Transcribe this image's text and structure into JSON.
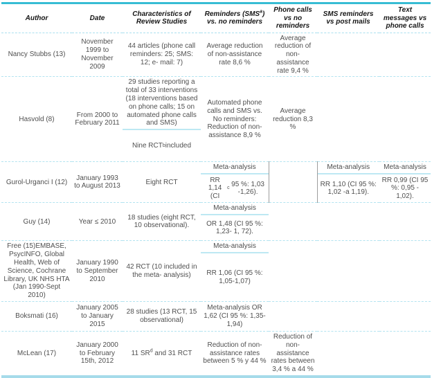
{
  "accent_colors": {
    "table_top_border": "#36bcd4",
    "table_bottom_border": "#a6dbea",
    "row_separator": "#b2e3f0",
    "cell_divider": "#bde8f3",
    "body_text": "#4f4f4f",
    "header_text": "#161616"
  },
  "table": {
    "columns": [
      {
        "key": "author",
        "label": "Author"
      },
      {
        "key": "date",
        "label": "Date"
      },
      {
        "key": "characteristics",
        "label": "Characteristics of Review Studies"
      },
      {
        "key": "sms-vs-none",
        "label": "Reminders (SMS^a) vs. no reminders"
      },
      {
        "key": "phone-vs-none",
        "label": "Phone calls vs no reminders"
      },
      {
        "key": "sms-vs-post",
        "label": "SMS reminders vs post mails"
      },
      {
        "key": "text-vs-phone",
        "label": "Text messages vs phone calls"
      }
    ],
    "rows": [
      {
        "cells": [
          "Nancy Stubbs (13)",
          "November 1999 to November 2009",
          "44 articles (phone call reminders: 25; SMS: 12; e- mail: 7)",
          "Average reduction of non-assistance rate 8,6 %",
          "Average reduction of non-assistance rate 9,4 %",
          "",
          ""
        ]
      },
      {
        "cells": [
          "Hasvold (8)",
          "From 2000 to February 2011",
          {
            "blocks": [
              "29 studies reporting a total of 33 interventions (18 interventions based on phone calls; 15 on automated phone calls and SMS)",
              "Nine RCT^b included"
            ]
          },
          "Automated phone calls and SMS vs. No reminders: Reduction of non-assistance 8,9 %",
          "Average reduction 8,3 %",
          "",
          ""
        ]
      },
      {
        "cells": [
          "Gurol-Urganci I (12)",
          "January 1993 to August 2013",
          "Eight RCT",
          {
            "blocks": [
              "Meta-analysis",
              "RR 1,14 (CI^c 95 %: 1,03 -1,26)."
            ]
          },
          {
            "text": "",
            "vborders": true
          },
          {
            "blocks": [
              "Meta-analysis",
              "RR 1,10 (CI 95 %: 1,02 -a 1,19)."
            ]
          },
          {
            "blocks": [
              "Meta-analysis",
              "RR 0,99 (CI 95 %: 0,95 - 1,02)."
            ]
          }
        ]
      },
      {
        "cells": [
          "Guy (14)",
          "Year ≤ 2010",
          "18 studies (eight RCT, 10 observational).",
          {
            "blocks": [
              "Meta-analysis",
              "OR 1,48 (CI 95 %: 1,23- 1, 72)."
            ]
          },
          "",
          "",
          ""
        ]
      },
      {
        "cells": [
          "Free (15)EMBASE, PsycINFO, Global Health, Web of Science, Cochrane Library, UK NHS HTA (Jan 1990-Sept 2010)",
          "January 1990 to September 2010",
          "42 RCT (10 included in the meta- analysis)",
          {
            "blocks": [
              "Meta-analysis",
              "RR 1,06 (CI 95 %: 1,05-1,07)"
            ]
          },
          "",
          "",
          ""
        ]
      },
      {
        "cells": [
          "Boksmati (16)",
          "January 2005 to January 2015",
          "28 studies (13 RCT, 15 observational)",
          "Meta-analysis OR 1,62 (CI 95 %: 1,35-1,94)",
          "",
          "",
          ""
        ]
      },
      {
        "cells": [
          "McLean (17)",
          "January 2000 to February 15th, 2012",
          "11 SR^d and 31 RCT",
          "Reduction of non-assistance rates between 5 % y 44 %",
          "Reduction of non-assistance rates between 3,4 % a 44 %",
          "",
          ""
        ]
      }
    ]
  }
}
